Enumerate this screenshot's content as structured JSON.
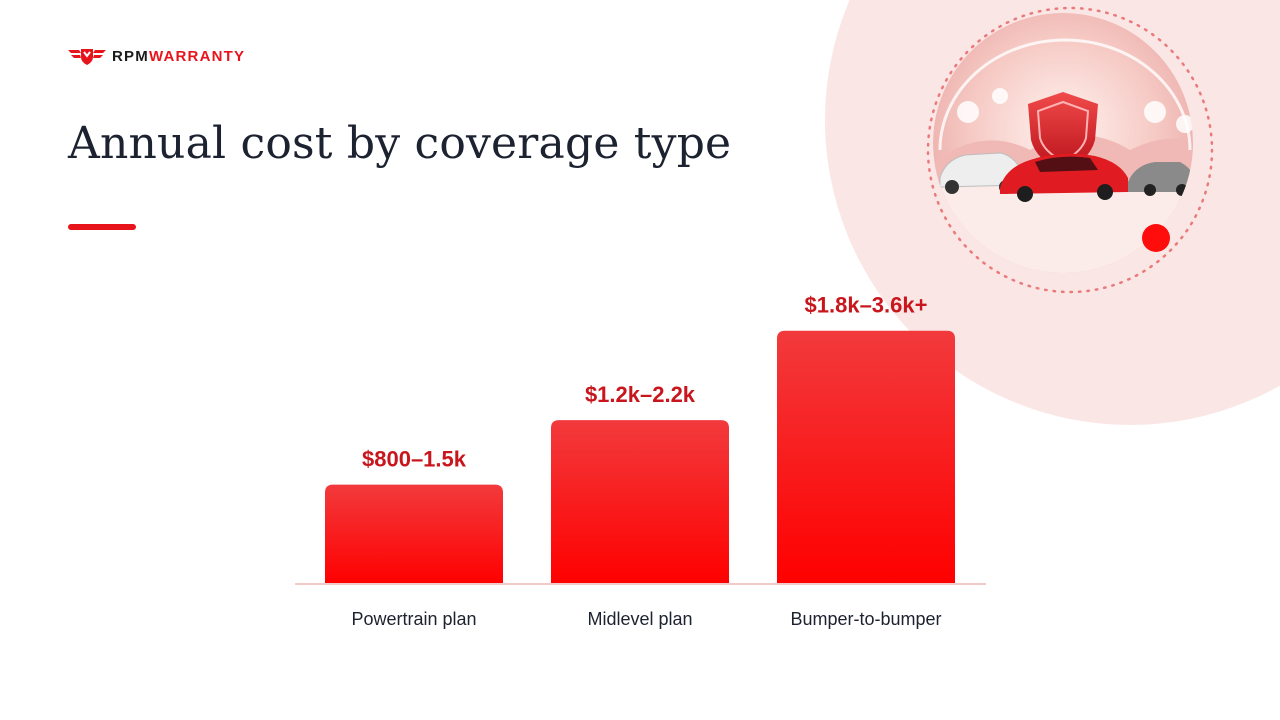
{
  "brand": {
    "name_prefix": "RPM",
    "name_suffix": "WARRANTY",
    "accent": "#e8141c",
    "icon": "winged-shield-logo-icon"
  },
  "slide": {
    "title": "Annual cost by coverage type"
  },
  "illustration": {
    "icon": "cars-with-shield-illustration",
    "theme_color": "#f7d9d9"
  },
  "chart_data": {
    "type": "bar",
    "categories": [
      "Powertrain plan",
      "Midlevel plan",
      "Bumper-to-bumper"
    ],
    "values": [
      1.0,
      1.65,
      2.55
    ],
    "value_labels": [
      "$800–1.5k",
      "$1.2k–2.2k",
      "$1.8k–3.6k+"
    ],
    "ylim": [
      0,
      3.0
    ],
    "grid": false,
    "bar_color_top": "#f23a3c",
    "bar_color_bottom": "#ff0000",
    "baseline_color": "#f3caca",
    "value_label_color": "#c8161c"
  }
}
